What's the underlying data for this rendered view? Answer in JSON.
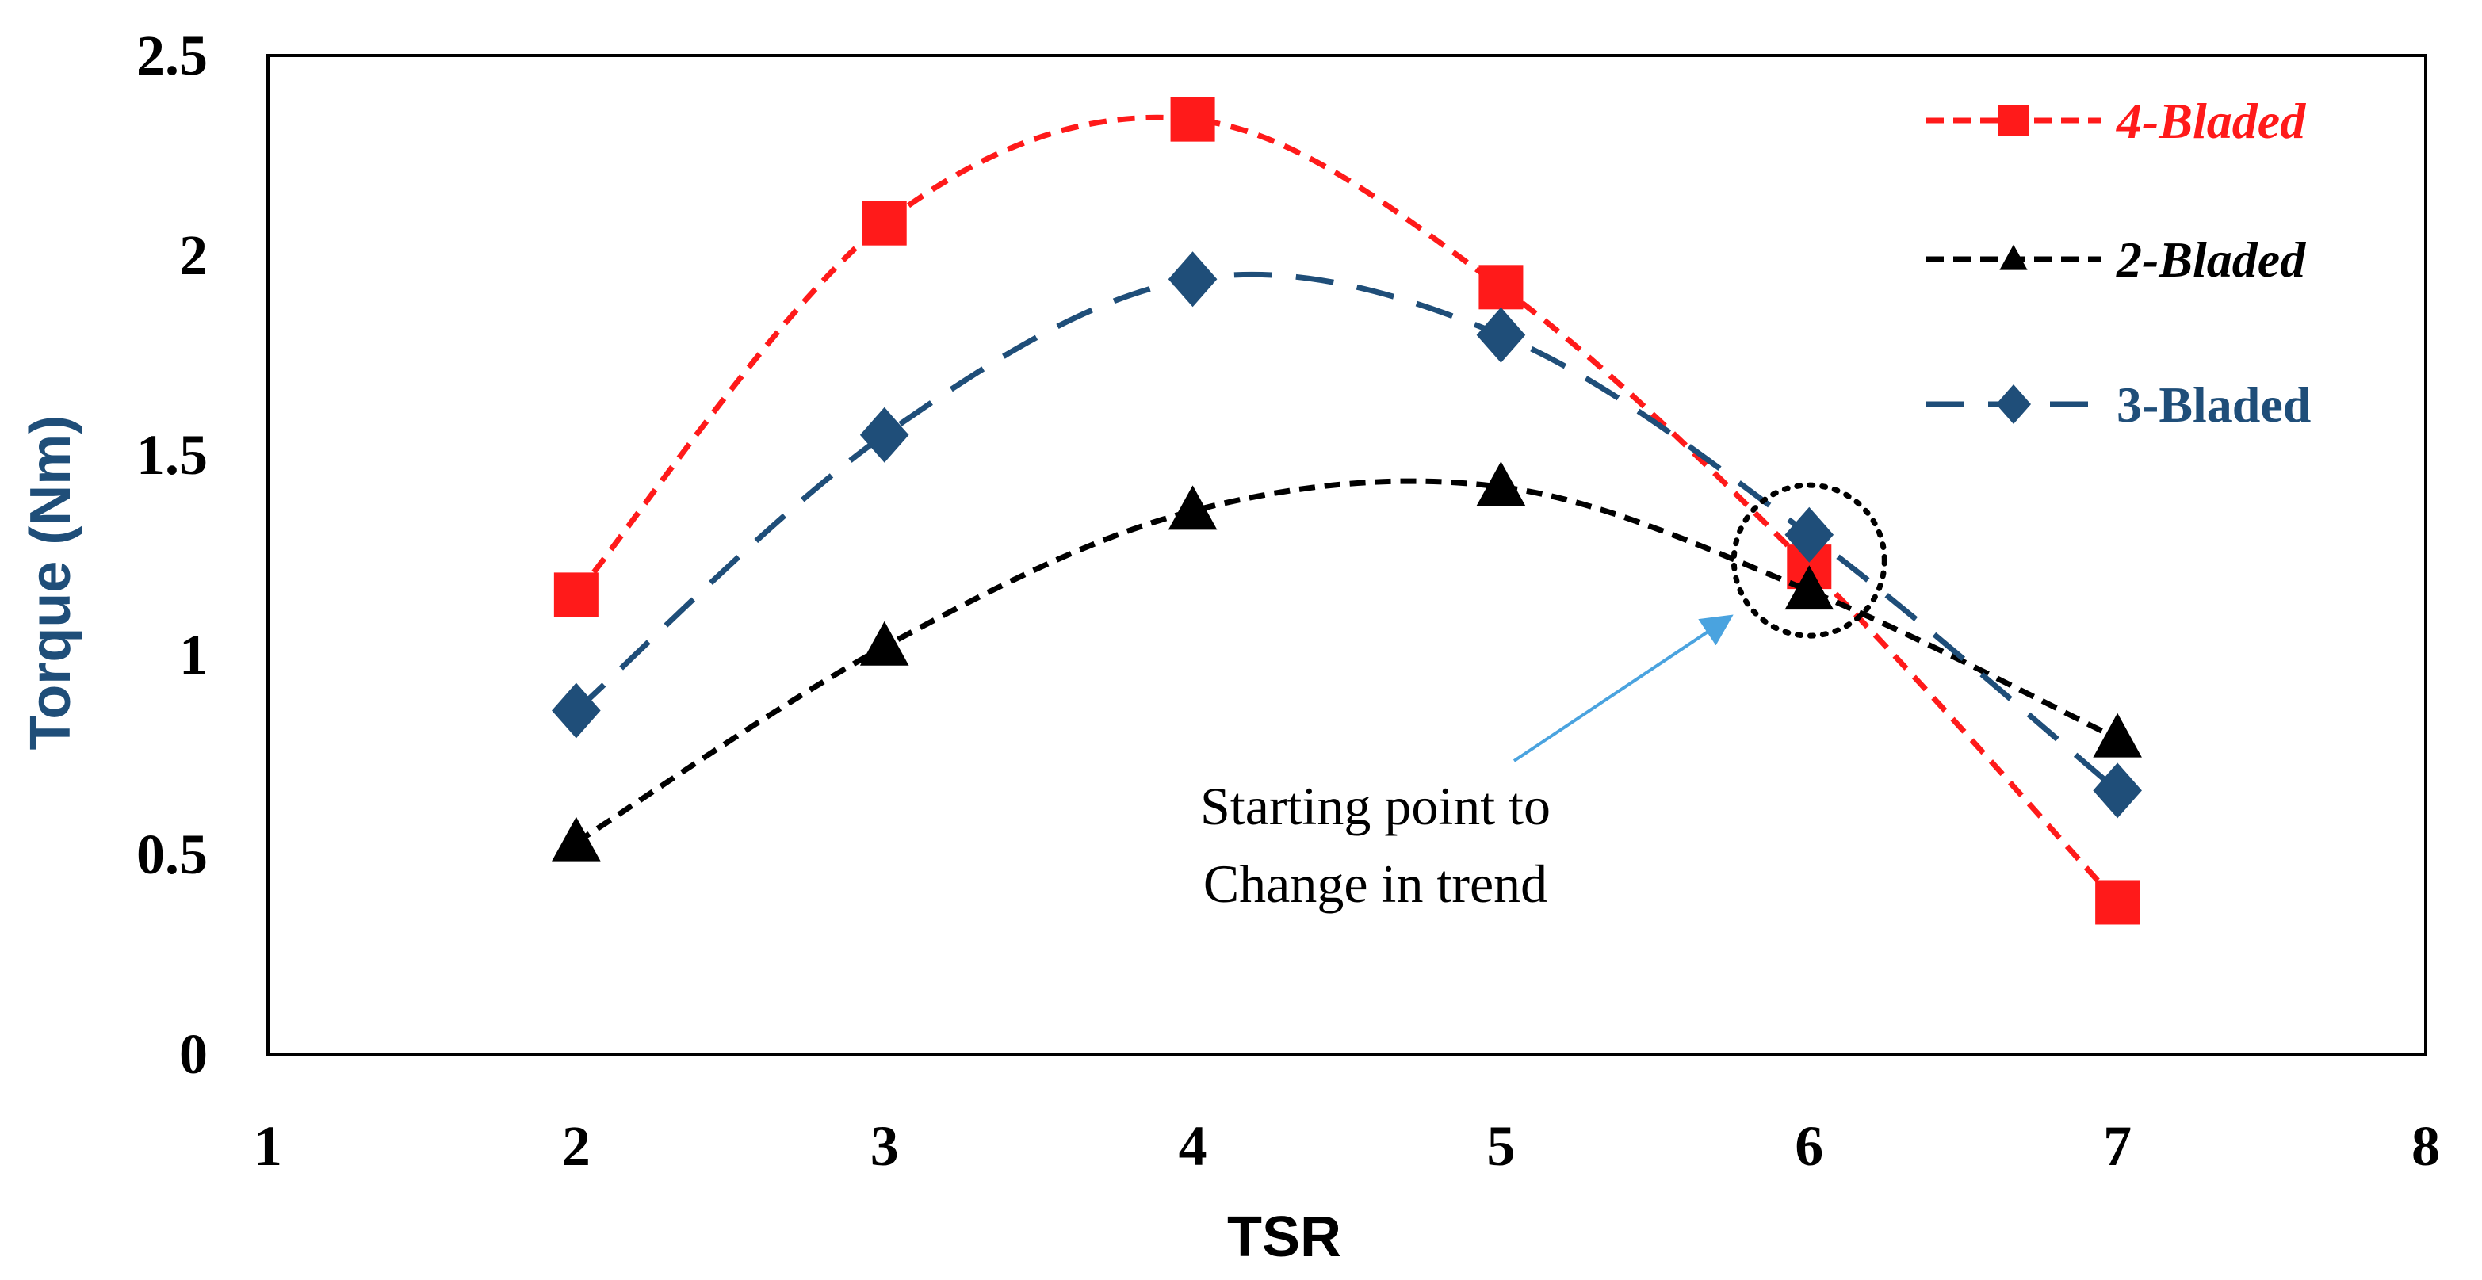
{
  "chart_data": {
    "type": "line",
    "title": "",
    "xlabel": "TSR",
    "ylabel": "Torque (Nm)",
    "xlim": [
      1,
      8
    ],
    "ylim": [
      0,
      2.5
    ],
    "xticks": [
      "1",
      "2",
      "3",
      "4",
      "5",
      "6",
      "7",
      "8"
    ],
    "yticks": [
      "0",
      "0.5",
      "1",
      "1.5",
      "2",
      "2.5"
    ],
    "grid": false,
    "legend_position": "top-right",
    "x": [
      2,
      3,
      4,
      5,
      6,
      7
    ],
    "series": [
      {
        "name": "4-Bladed",
        "values": [
          1.15,
          2.08,
          2.34,
          1.92,
          1.22,
          0.38
        ],
        "color": "#ff1a1a",
        "marker": "square",
        "label_style": "italic"
      },
      {
        "name": "2-Bladed",
        "values": [
          0.53,
          1.02,
          1.36,
          1.42,
          1.16,
          0.79
        ],
        "color": "#000000",
        "marker": "triangle",
        "label_style": "italic"
      },
      {
        "name": "3-Bladed",
        "values": [
          0.86,
          1.55,
          1.94,
          1.8,
          1.3,
          0.66
        ],
        "color": "#1f4e79",
        "marker": "diamond",
        "label_style": "normal"
      }
    ],
    "annotations": [
      {
        "text_lines": [
          "Starting point to",
          "Change in trend"
        ],
        "target_x": 6,
        "target_y": 1.22,
        "arrow_color": "#4aa3df"
      }
    ]
  }
}
